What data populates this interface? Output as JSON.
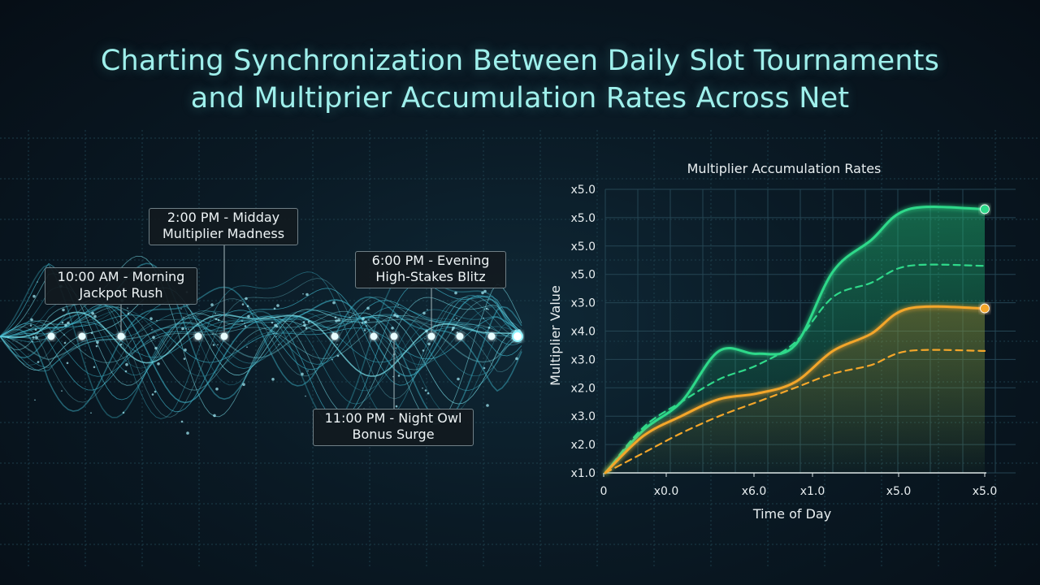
{
  "title": {
    "line1": "Charting Synchronization Between Daily Slot Tournaments",
    "line2": "and Multiprier Accumulation Rates Across Net"
  },
  "timeline": {
    "events": [
      {
        "line1": "10:00 AM - Morning",
        "line2": "Jackpot Rush"
      },
      {
        "line1": "2:00 PM - Midday",
        "line2": "Multiplier Madness"
      },
      {
        "line1": "6:00 PM - Evening",
        "line2": "High-Stakes Blitz"
      },
      {
        "line1": "11:00 PM - Night Owl",
        "line2": "Bonus Surge"
      }
    ]
  },
  "chart_data": {
    "type": "line",
    "title": "Multiplier Accumulation Rates",
    "xlabel": "Time of Day",
    "ylabel": "Multiplier Value",
    "x_tick_labels": [
      "0",
      "x0.0",
      "x6.0",
      "x1.0",
      "x5.0",
      "x5.0"
    ],
    "y_tick_labels": [
      "x1.0",
      "x2.0",
      "x3.0",
      "x2.0",
      "x3.0",
      "x4.0",
      "x3.0",
      "x5.0",
      "x5.0",
      "x5.0",
      "x5.0"
    ],
    "x_range": [
      0,
      10
    ],
    "y_range": [
      0,
      10
    ],
    "grid": true,
    "series": [
      {
        "style": "solid",
        "color": "#2fd98a",
        "area": true,
        "end_marker": true,
        "points": [
          [
            0,
            0
          ],
          [
            1,
            1.5
          ],
          [
            2,
            2.5
          ],
          [
            3,
            4.3
          ],
          [
            4,
            4.2
          ],
          [
            5,
            4.5
          ],
          [
            6,
            7.1
          ],
          [
            7,
            8.2
          ],
          [
            8,
            9.3
          ],
          [
            10,
            9.3
          ]
        ]
      },
      {
        "style": "dashed",
        "color": "#2fd98a",
        "points": [
          [
            0,
            0
          ],
          [
            1,
            1.6
          ],
          [
            2,
            2.5
          ],
          [
            3,
            3.3
          ],
          [
            4,
            3.8
          ],
          [
            5,
            4.6
          ],
          [
            6,
            6.2
          ],
          [
            7,
            6.7
          ],
          [
            8,
            7.3
          ],
          [
            10,
            7.3
          ]
        ]
      },
      {
        "style": "solid",
        "color": "#f4a62a",
        "area": true,
        "end_marker": true,
        "points": [
          [
            0,
            0
          ],
          [
            1,
            1.3
          ],
          [
            2,
            2.0
          ],
          [
            3,
            2.6
          ],
          [
            4,
            2.8
          ],
          [
            5,
            3.2
          ],
          [
            6,
            4.3
          ],
          [
            7,
            4.9
          ],
          [
            8,
            5.8
          ],
          [
            10,
            5.8
          ]
        ]
      },
      {
        "style": "dashed",
        "color": "#f4a62a",
        "points": [
          [
            0,
            0
          ],
          [
            1,
            0.7
          ],
          [
            2,
            1.4
          ],
          [
            3,
            2.0
          ],
          [
            4,
            2.5
          ],
          [
            5,
            3.0
          ],
          [
            6,
            3.5
          ],
          [
            7,
            3.8
          ],
          [
            8,
            4.3
          ],
          [
            10,
            4.3
          ]
        ]
      }
    ]
  }
}
